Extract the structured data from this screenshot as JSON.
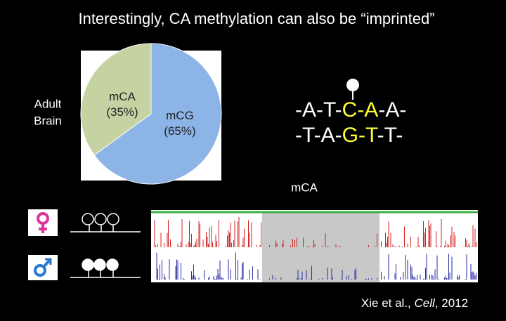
{
  "title": "Interestingly, CA methylation can also be “imprinted”",
  "chart_data": {
    "type": "pie",
    "categories": [
      "mCA",
      "mCG"
    ],
    "values": [
      35,
      65
    ],
    "value_labels": [
      "(35%)",
      "(65%)"
    ],
    "colors": [
      "#c5d3a2",
      "#8db4e6"
    ]
  },
  "tissue": [
    "Adult",
    "Brain"
  ],
  "sequence": {
    "top": [
      "-A-T-",
      "C-A",
      "-A-"
    ],
    "bottom": [
      "-T-A-",
      "G-T",
      "-T-"
    ]
  },
  "track_label": "mCA",
  "citation": [
    "Xie et al., ",
    "Cell",
    ", 2012"
  ]
}
